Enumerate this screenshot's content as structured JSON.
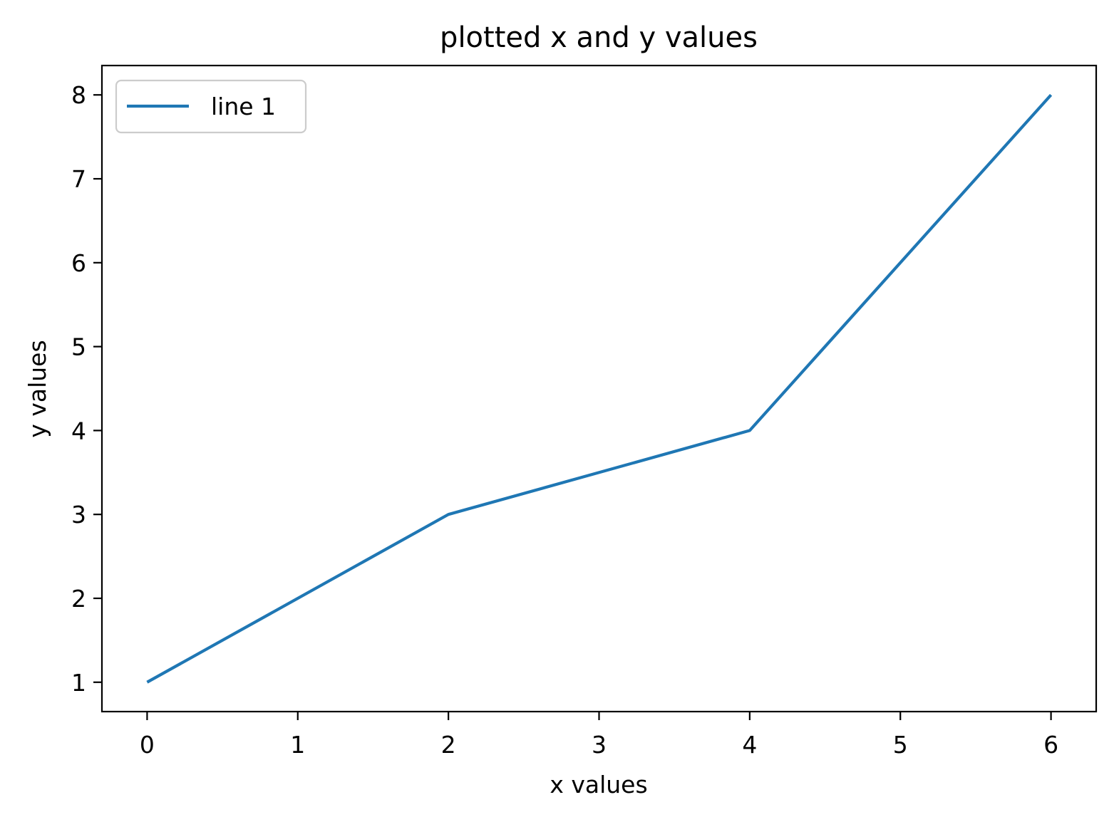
{
  "chart_data": {
    "type": "line",
    "title": "plotted x and y values",
    "xlabel": "x values",
    "ylabel": "y values",
    "xlim": [
      -0.3,
      6.3
    ],
    "ylim": [
      0.65,
      8.35
    ],
    "xticks": [
      0,
      1,
      2,
      3,
      4,
      5,
      6
    ],
    "yticks": [
      1,
      2,
      3,
      4,
      5,
      6,
      7,
      8
    ],
    "grid": false,
    "legend": {
      "placement": "top-left",
      "entries": [
        "line 1"
      ]
    },
    "series": [
      {
        "name": "line 1",
        "color": "#1f77b4",
        "x": [
          0,
          2,
          4,
          6
        ],
        "y": [
          1,
          3,
          4,
          8
        ]
      }
    ]
  }
}
